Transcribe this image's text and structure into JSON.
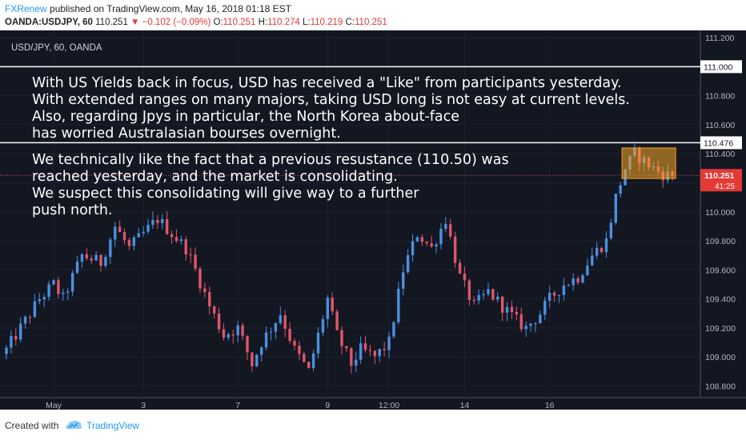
{
  "header": {
    "brand": "FXRenew",
    "published": " published on TradingView.com, May 16, 2018 01:18 EST",
    "symbol": "OANDA:USDJPY, 60",
    "last": "110.251",
    "change": "▼ −0.102 (−0.09%)",
    "o_label": "O:",
    "o_value": "110.251",
    "h_label": "H:",
    "h_value": "110.274",
    "l_label": "L:",
    "l_value": "110.219",
    "c_label": "C:",
    "c_value": "110.251"
  },
  "footer": {
    "created_with": "Created with",
    "brand": "TradingView"
  },
  "colors": {
    "background": "#131722",
    "up": "#4a90e2",
    "down": "#e0566a",
    "box": "#f5a623",
    "level": "#ffffff"
  },
  "chart_data": {
    "type": "candlestick",
    "title": "USD/JPY, 60, OANDA",
    "ylim": [
      108.72,
      111.25
    ],
    "y_ticks": [
      "111.200",
      "111.000",
      "110.800",
      "110.600",
      "110.400",
      "110.200",
      "110.000",
      "109.800",
      "109.600",
      "109.400",
      "109.200",
      "109.000",
      "108.800"
    ],
    "x_ticks": [
      "May",
      "3",
      "7",
      "9",
      "12:00",
      "14",
      "16"
    ],
    "horizontal_levels": [
      {
        "value": 111.0,
        "label": "111.000"
      },
      {
        "value": 110.476,
        "label": "110.476"
      }
    ],
    "last_price": {
      "value": 110.251,
      "label": "110.251",
      "countdown": "41:25"
    },
    "highlight_box": {
      "x_from": 131,
      "x_to": 141,
      "y_from": 110.23,
      "y_to": 110.44
    },
    "annotations": [
      {
        "lines": [
          "With US Yields back in focus, USD has received a \"Like\" from participants yesterday.",
          "With extended ranges on many majors, taking USD long is not easy at current levels.",
          "Also, regarding Jpys in particular, the North Korea about-face",
          "has worried Australasian bourses overnight."
        ]
      },
      {
        "lines": [
          "We technically like the fact that a previous resustance (110.50) was",
          "reached yesterday, and the market is consolidating.",
          "We suspect this consolidating will give way to a further",
          "push north."
        ]
      }
    ],
    "anchors": [
      [
        0,
        109.05
      ],
      [
        3,
        109.2
      ],
      [
        7,
        109.4
      ],
      [
        10,
        109.5
      ],
      [
        12,
        109.4
      ],
      [
        16,
        109.7
      ],
      [
        20,
        109.65
      ],
      [
        23,
        109.9
      ],
      [
        26,
        109.75
      ],
      [
        29,
        109.85
      ],
      [
        32,
        109.95
      ],
      [
        35,
        109.85
      ],
      [
        38,
        109.75
      ],
      [
        40,
        109.6
      ],
      [
        43,
        109.35
      ],
      [
        46,
        109.15
      ],
      [
        49,
        109.2
      ],
      [
        52,
        108.95
      ],
      [
        54,
        109.1
      ],
      [
        58,
        109.3
      ],
      [
        61,
        109.05
      ],
      [
        64,
        108.9
      ],
      [
        68,
        109.4
      ],
      [
        70,
        109.15
      ],
      [
        73,
        108.95
      ],
      [
        75,
        109.05
      ],
      [
        78,
        109.0
      ],
      [
        81,
        109.1
      ],
      [
        84,
        109.6
      ],
      [
        87,
        109.85
      ],
      [
        90,
        109.75
      ],
      [
        93,
        109.95
      ],
      [
        96,
        109.55
      ],
      [
        99,
        109.35
      ],
      [
        102,
        109.45
      ],
      [
        105,
        109.35
      ],
      [
        108,
        109.25
      ],
      [
        110,
        109.2
      ],
      [
        113,
        109.3
      ],
      [
        115,
        109.4
      ],
      [
        118,
        109.5
      ],
      [
        121,
        109.55
      ],
      [
        124,
        109.7
      ],
      [
        127,
        109.8
      ],
      [
        129,
        110.1
      ],
      [
        131,
        110.3
      ],
      [
        133,
        110.4
      ],
      [
        135,
        110.35
      ],
      [
        137,
        110.3
      ],
      [
        139,
        110.26
      ],
      [
        141,
        110.25
      ]
    ],
    "candle_count": 142
  }
}
